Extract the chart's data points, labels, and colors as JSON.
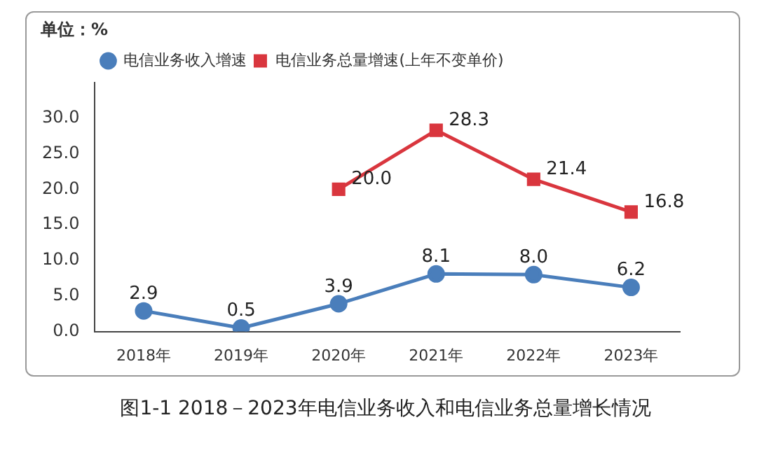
{
  "chart_data": {
    "type": "line",
    "title": "图1-1   2018－2023年电信业务收入和电信业务总量增长情况",
    "ylabel": "单位：%",
    "categories": [
      "2018年",
      "2019年",
      "2020年",
      "2021年",
      "2022年",
      "2023年"
    ],
    "series": [
      {
        "name": "电信业务收入增速",
        "color": "#4a7ebb",
        "marker": "circle",
        "values": [
          2.9,
          0.5,
          3.9,
          8.1,
          8.0,
          6.2
        ],
        "value_labels": [
          "2.9",
          "0.5",
          "3.9",
          "8.1",
          "8.0",
          "6.2"
        ]
      },
      {
        "name": "电信业务总量增速(上年不变单价)",
        "color": "#d9363e",
        "marker": "square",
        "values": [
          null,
          null,
          20.0,
          28.3,
          21.4,
          16.8
        ],
        "value_labels": [
          null,
          null,
          "20.0",
          "28.3",
          "21.4",
          "16.8"
        ]
      }
    ],
    "ylim": [
      0,
      35
    ],
    "yticks": [
      {
        "value": 0,
        "label": "0.0"
      },
      {
        "value": 5,
        "label": "5.0"
      },
      {
        "value": 10,
        "label": "10.0"
      },
      {
        "value": 15,
        "label": "15.0"
      },
      {
        "value": 20,
        "label": "20.0"
      },
      {
        "value": 25,
        "label": "25.0"
      },
      {
        "value": 30,
        "label": "30.0"
      }
    ],
    "grid": false,
    "legend": "top left"
  }
}
